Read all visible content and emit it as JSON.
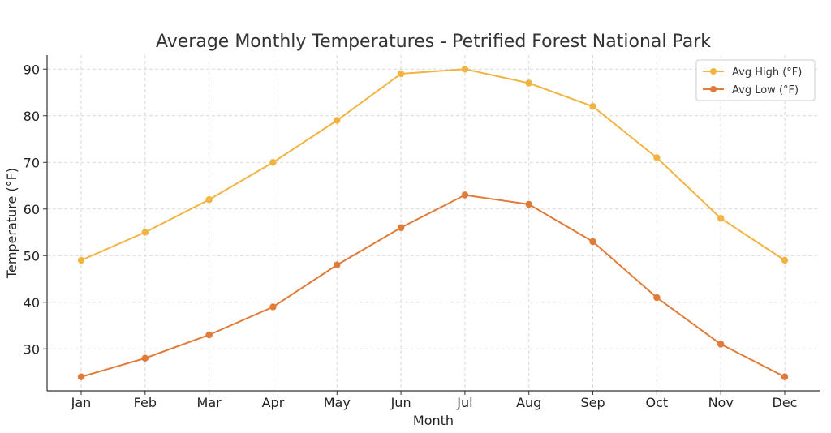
{
  "chart_data": {
    "type": "line",
    "title": "Average Monthly Temperatures - Petrified Forest National Park",
    "xlabel": "Month",
    "ylabel": "Temperature (°F)",
    "categories": [
      "Jan",
      "Feb",
      "Mar",
      "Apr",
      "May",
      "Jun",
      "Jul",
      "Aug",
      "Sep",
      "Oct",
      "Nov",
      "Dec"
    ],
    "ylim": [
      21,
      93
    ],
    "yticks": [
      30,
      40,
      50,
      60,
      70,
      80,
      90
    ],
    "grid": true,
    "legend_position": "top-right",
    "series": [
      {
        "name": "Avg High (°F)",
        "color": "#F2B441",
        "values": [
          49,
          55,
          62,
          70,
          79,
          89,
          90,
          87,
          82,
          71,
          58,
          49
        ]
      },
      {
        "name": "Avg Low (°F)",
        "color": "#E07B39",
        "values": [
          24,
          28,
          33,
          39,
          48,
          56,
          63,
          61,
          53,
          41,
          31,
          24
        ]
      }
    ]
  }
}
